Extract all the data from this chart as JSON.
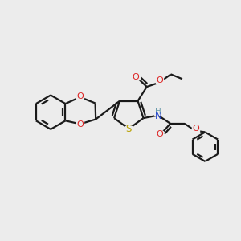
{
  "background_color": "#ececec",
  "bond_color": "#1a1a1a",
  "figsize": [
    3.0,
    3.0
  ],
  "dpi": 100,
  "xlim": [
    0,
    10
  ],
  "ylim": [
    0,
    10
  ]
}
